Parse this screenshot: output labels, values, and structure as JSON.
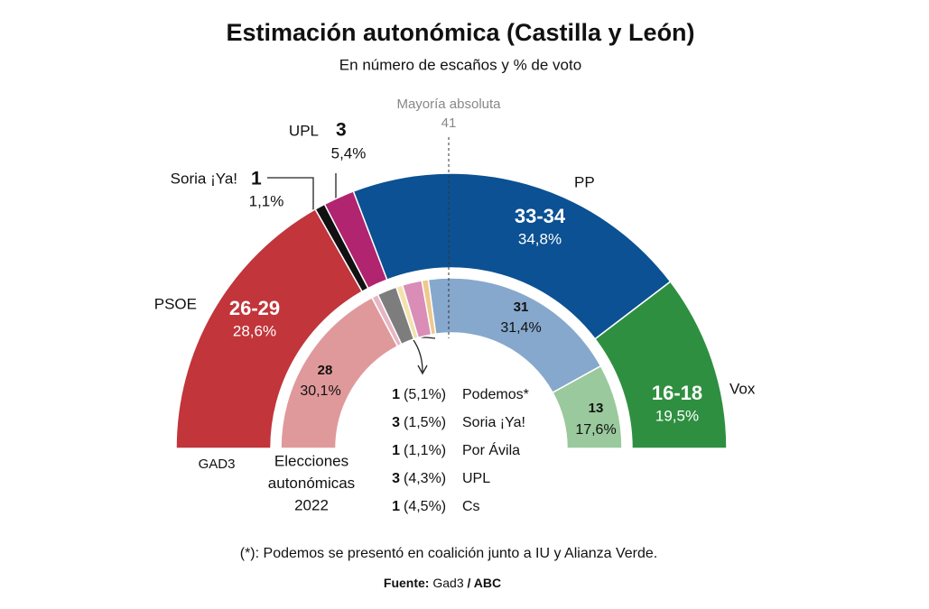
{
  "chart_data": {
    "type": "parliament",
    "title": "Estimación autonómica (Castilla y León)",
    "subtitle": "En número de escaños y % de voto",
    "majority": {
      "label": "Mayoría absoluta",
      "seats": 41
    },
    "rings": [
      {
        "name": "GAD3",
        "parties": [
          {
            "name": "PSOE",
            "color": "#c1353b",
            "seats": [
              26,
              29
            ],
            "seats_label": "26-29",
            "vote": 28.6,
            "vote_label": "28,6%"
          },
          {
            "name": "Soria ¡Ya!",
            "color": "#111111",
            "seats": [
              1
            ],
            "vote": 1.1,
            "vote_label": "1,1%"
          },
          {
            "name": "UPL",
            "color": "#b1246f",
            "seats": [
              3
            ],
            "vote": 5.4,
            "vote_label": "5,4%"
          },
          {
            "name": "PP",
            "color": "#0b5193",
            "seats": [
              33,
              34
            ],
            "seats_label": "33-34",
            "vote": 34.8,
            "vote_label": "34,8%"
          },
          {
            "name": "Vox",
            "color": "#2f8f40",
            "seats": [
              16,
              18
            ],
            "seats_label": "16-18",
            "vote": 19.5,
            "vote_label": "19,5%"
          }
        ]
      },
      {
        "name_lines": [
          "Elecciones",
          "autonómicas",
          "2022"
        ],
        "parties": [
          {
            "color": "#e0999b",
            "seats": [
              28
            ],
            "vote": 30.1,
            "vote_label": "30,1%"
          },
          {
            "name": "Podemos*",
            "color": "#e7b6c4",
            "seats": [
              1
            ],
            "vote": 5.1,
            "vote_label": "(5,1%)"
          },
          {
            "name": "Soria ¡Ya!",
            "color": "#7d7d7d",
            "seats": [
              3
            ],
            "vote": 1.5,
            "vote_label": "(1,5%)"
          },
          {
            "name": "Por Ávila",
            "color": "#f2e2ad",
            "seats": [
              1
            ],
            "vote": 1.1,
            "vote_label": "(1,1%)"
          },
          {
            "name": "UPL",
            "color": "#d98db7",
            "seats": [
              3
            ],
            "vote": 4.3,
            "vote_label": "(4,3%)"
          },
          {
            "name": "Cs",
            "color": "#efc88b",
            "seats": [
              1
            ],
            "vote": 4.5,
            "vote_label": "(4,5%)"
          },
          {
            "color": "#86a8cd",
            "seats": [
              31
            ],
            "vote": 31.4,
            "vote_label": "31,4%"
          },
          {
            "color": "#99c99c",
            "seats": [
              13
            ],
            "vote": 17.6,
            "vote_label": "17,6%"
          }
        ]
      }
    ],
    "footnote": "(*): Podemos se presentó en coalición junto a IU y Alianza Verde.",
    "source": {
      "label": "Fuente:",
      "parts": [
        "Gad3",
        "/ ABC"
      ]
    }
  }
}
